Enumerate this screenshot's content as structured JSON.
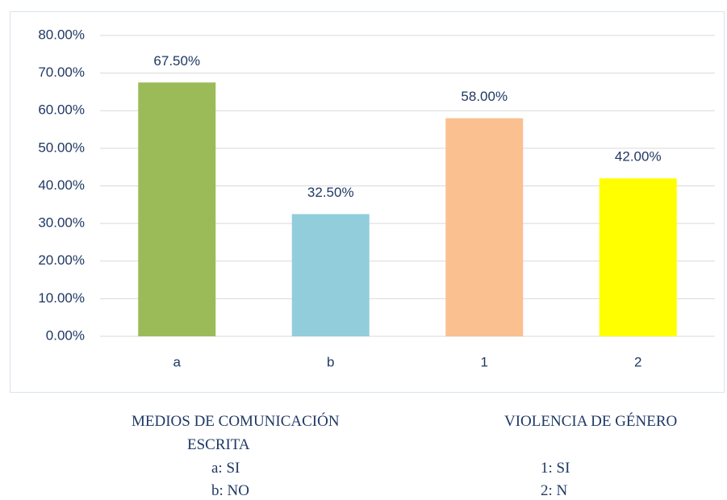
{
  "chart_data": {
    "type": "bar",
    "categories": [
      "a",
      "b",
      "1",
      "2"
    ],
    "values": [
      67.5,
      32.5,
      58,
      42
    ],
    "value_labels": [
      "67.50%",
      "32.50%",
      "58.00%",
      "42.00%"
    ],
    "colors": [
      "#9bbb59",
      "#92cddc",
      "#fac090",
      "#ffff00"
    ],
    "ylim": [
      0,
      80
    ],
    "yticks": [
      {
        "value": 0,
        "label": "0.00%"
      },
      {
        "value": 10,
        "label": "10.00%"
      },
      {
        "value": 20,
        "label": "20.00%"
      },
      {
        "value": 30,
        "label": "30.00%"
      },
      {
        "value": 40,
        "label": "40.00%"
      },
      {
        "value": 50,
        "label": "50.00%"
      },
      {
        "value": 60,
        "label": "60.00%"
      },
      {
        "value": 70,
        "label": "70.00%"
      },
      {
        "value": 80,
        "label": "80.00%"
      }
    ],
    "grid": true,
    "annotations": [
      "MEDIOS DE COMUNICACIÓN",
      "ESCRITA",
      "a: SI",
      "b: NO",
      "VIOLENCIA DE GÉNERO",
      "1: SI",
      "2: N"
    ]
  }
}
